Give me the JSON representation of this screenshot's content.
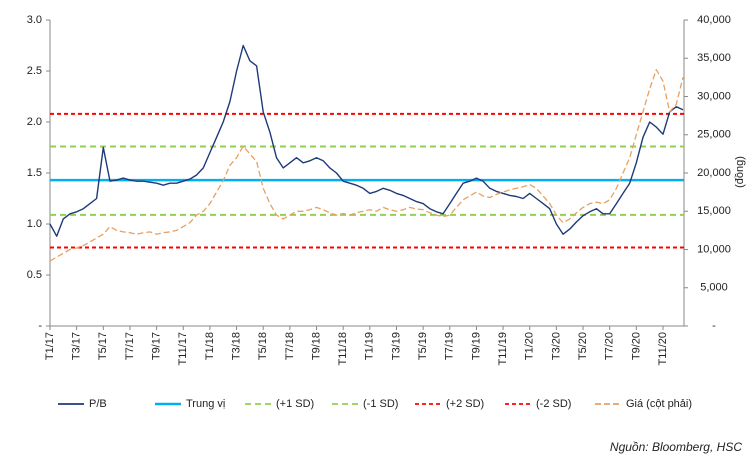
{
  "chart_data": {
    "type": "line",
    "categories": [
      "T1/17",
      null,
      null,
      null,
      "T3/17",
      null,
      null,
      null,
      "T5/17",
      null,
      null,
      null,
      "T7/17",
      null,
      null,
      null,
      "T9/17",
      null,
      null,
      null,
      "T11/17",
      null,
      null,
      null,
      "T1/18",
      null,
      null,
      null,
      "T3/18",
      null,
      null,
      null,
      "T5/18",
      null,
      null,
      null,
      "T7/18",
      null,
      null,
      null,
      "T9/18",
      null,
      null,
      null,
      "T11/18",
      null,
      null,
      null,
      "T1/19",
      null,
      null,
      null,
      "T3/19",
      null,
      null,
      null,
      "T5/19",
      null,
      null,
      null,
      "T7/19",
      null,
      null,
      null,
      "T9/19",
      null,
      null,
      null,
      "T11/19",
      null,
      null,
      null,
      "T1/20",
      null,
      null,
      null,
      "T3/20",
      null,
      null,
      null,
      "T5/20",
      null,
      null,
      null,
      "T7/20",
      null,
      null,
      null,
      "T9/20",
      null,
      null,
      null,
      "T11/20",
      null,
      null,
      null
    ],
    "series": [
      {
        "name": "P/B",
        "color": "#1f3a78",
        "values": [
          1.0,
          0.88,
          1.05,
          1.1,
          1.12,
          1.15,
          1.2,
          1.25,
          1.75,
          1.42,
          1.43,
          1.45,
          1.43,
          1.42,
          1.42,
          1.41,
          1.4,
          1.38,
          1.4,
          1.4,
          1.42,
          1.44,
          1.48,
          1.55,
          1.7,
          1.85,
          2.0,
          2.2,
          2.5,
          2.75,
          2.6,
          2.55,
          2.1,
          1.9,
          1.65,
          1.55,
          1.6,
          1.65,
          1.6,
          1.62,
          1.65,
          1.62,
          1.55,
          1.5,
          1.42,
          1.4,
          1.38,
          1.35,
          1.3,
          1.32,
          1.35,
          1.33,
          1.3,
          1.28,
          1.25,
          1.22,
          1.2,
          1.15,
          1.12,
          1.1,
          1.2,
          1.3,
          1.4,
          1.42,
          1.45,
          1.42,
          1.35,
          1.32,
          1.3,
          1.28,
          1.27,
          1.25,
          1.3,
          1.25,
          1.2,
          1.15,
          1.0,
          0.9,
          0.95,
          1.02,
          1.08,
          1.12,
          1.15,
          1.1,
          1.1,
          1.2,
          1.3,
          1.4,
          1.6,
          1.85,
          2.0,
          1.95,
          1.88,
          2.1,
          2.15,
          2.12
        ]
      },
      {
        "name": "Giá (cột phải)",
        "color": "#e8a060",
        "axis": "y2",
        "dash": "6 3",
        "values": [
          8500,
          9000,
          9500,
          10000,
          10200,
          10500,
          11000,
          11500,
          12000,
          13000,
          12500,
          12300,
          12200,
          12000,
          12200,
          12300,
          12000,
          12200,
          12300,
          12500,
          13000,
          13500,
          14500,
          15000,
          16000,
          17500,
          19000,
          21000,
          22000,
          23500,
          22500,
          21500,
          18000,
          16000,
          14500,
          14000,
          14500,
          15000,
          15000,
          15200,
          15500,
          15200,
          14800,
          14500,
          14700,
          14500,
          14800,
          15000,
          15200,
          15000,
          15500,
          15200,
          15000,
          15200,
          15500,
          15300,
          15200,
          14800,
          14500,
          14300,
          14500,
          15500,
          16500,
          17000,
          17500,
          17000,
          16800,
          17200,
          17500,
          17800,
          18000,
          18200,
          18500,
          18000,
          17000,
          16000,
          14500,
          13500,
          14000,
          14800,
          15500,
          16000,
          16200,
          16000,
          16500,
          18000,
          20000,
          22000,
          25000,
          28000,
          31000,
          33500,
          32000,
          28000,
          29000,
          32500
        ]
      }
    ],
    "reference_lines": [
      {
        "name": "Trung vị",
        "value": 1.43,
        "color": "#00b0f0",
        "dash": "none"
      },
      {
        "name": "(+1 SD)",
        "value": 1.76,
        "color": "#92d050",
        "dash": "6 4"
      },
      {
        "name": "(-1 SD)",
        "value": 1.09,
        "color": "#92d050",
        "dash": "6 4"
      },
      {
        "name": "(+2 SD)",
        "value": 2.08,
        "color": "#ff0000",
        "dash": "4 3"
      },
      {
        "name": "(-2 SD)",
        "value": 0.77,
        "color": "#ff0000",
        "dash": "4 3"
      }
    ],
    "ylim": [
      0,
      3
    ],
    "yticks": [
      {
        "value": 0,
        "label": "-"
      },
      0.5,
      {
        "value": 1,
        "label": "1.0"
      },
      1.5,
      {
        "value": 2,
        "label": "2.0"
      },
      2.5,
      {
        "value": 3,
        "label": "3.0"
      }
    ],
    "y2lim": [
      0,
      40000
    ],
    "y2ticks": [
      {
        "value": 0,
        "label": "-"
      },
      {
        "value": 5000,
        "label": "5,000"
      },
      {
        "value": 10000,
        "label": "10,000"
      },
      {
        "value": 15000,
        "label": "15,000"
      },
      {
        "value": 20000,
        "label": "20,000"
      },
      {
        "value": 25000,
        "label": "25,000"
      },
      {
        "value": 30000,
        "label": "30,000"
      },
      {
        "value": 35000,
        "label": "35,000"
      },
      {
        "value": 40000,
        "label": "40,000"
      }
    ],
    "y2label": "(đồng)",
    "source": "Nguồn: Bloomberg, HSC"
  }
}
